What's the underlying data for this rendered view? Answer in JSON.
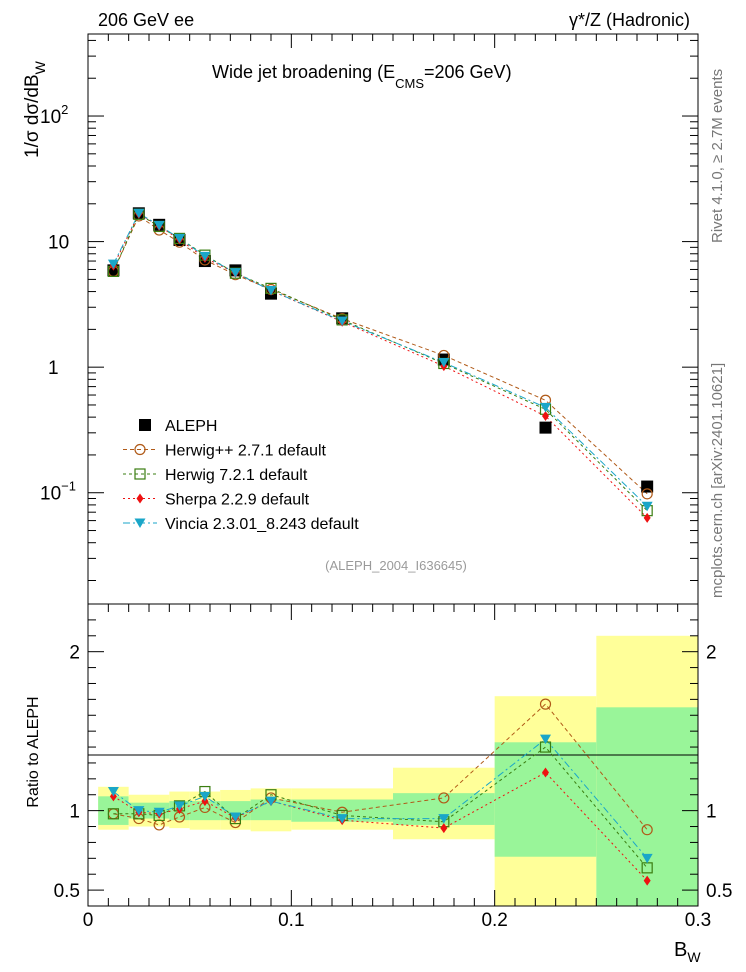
{
  "header": {
    "left_label": "206 GeV ee",
    "right_label": "γ*/Z (Hadronic)",
    "side_label_top": "Rivet 4.1.0, ≥ 2.7M events",
    "side_label_bottom": "mcplots.cern.ch [arXiv:2401.10621]"
  },
  "chart_data": {
    "type": "scatter",
    "title": "Wide jet broadening (E_CMS=206 GeV)",
    "title_main": "Wide jet broadening (E",
    "title_sub": "CMS",
    "title_tail": "=206 GeV)",
    "xlabel": "B_W",
    "xlabel_main": "B",
    "xlabel_sub": "W",
    "ylabel": "1/σ dσ/dB_W",
    "ylabel_main": "1/σ  dσ/dB",
    "ylabel_sub": "W",
    "ratio_ylabel": "Ratio to ALEPH",
    "watermark": "(ALEPH_2004_I636645)",
    "xlim": [
      0,
      0.3
    ],
    "ylim": [
      0.013,
      450
    ],
    "yscale": "log",
    "ratio_ylim": [
      0.4,
      2.3
    ],
    "x_ticks": [
      {
        "v": 0,
        "label": "0"
      },
      {
        "v": 0.1,
        "label": "0.1"
      },
      {
        "v": 0.2,
        "label": "0.2"
      },
      {
        "v": 0.3,
        "label": "0.3"
      }
    ],
    "y_ticks": [
      {
        "v": 0.1,
        "base": "10",
        "exp": "−1"
      },
      {
        "v": 1,
        "base": "1",
        "exp": ""
      },
      {
        "v": 10,
        "base": "10",
        "exp": ""
      },
      {
        "v": 100,
        "base": "10",
        "exp": "2"
      }
    ],
    "ratio_ticks": [
      {
        "v": 0.5,
        "label": "0.5"
      },
      {
        "v": 1,
        "label": "1"
      },
      {
        "v": 2,
        "label": "2"
      }
    ],
    "bins": [
      [
        0.005,
        0.02
      ],
      [
        0.02,
        0.03
      ],
      [
        0.03,
        0.04
      ],
      [
        0.04,
        0.05
      ],
      [
        0.05,
        0.065
      ],
      [
        0.065,
        0.08
      ],
      [
        0.08,
        0.1
      ],
      [
        0.1,
        0.15
      ],
      [
        0.15,
        0.2
      ],
      [
        0.2,
        0.25
      ],
      [
        0.25,
        0.3
      ]
    ],
    "x": [
      0.0125,
      0.025,
      0.035,
      0.045,
      0.0575,
      0.0725,
      0.09,
      0.125,
      0.175,
      0.225,
      0.275
    ],
    "data": {
      "name": "ALEPH",
      "values": [
        5.9,
        16.8,
        13.6,
        10.3,
        7.0,
        5.9,
        3.85,
        2.45,
        1.15,
        0.33,
        0.112
      ]
    },
    "band_inner": [
      [
        0.91,
        1.09
      ],
      [
        0.95,
        1.05
      ],
      [
        0.95,
        1.05
      ],
      [
        0.94,
        1.06
      ],
      [
        0.94,
        1.06
      ],
      [
        0.94,
        1.06
      ],
      [
        0.94,
        1.07
      ],
      [
        0.93,
        1.07
      ],
      [
        0.91,
        1.11
      ],
      [
        0.71,
        1.43
      ],
      [
        0.37,
        1.65
      ]
    ],
    "band_outer": [
      [
        0.88,
        1.15
      ],
      [
        0.9,
        1.1
      ],
      [
        0.9,
        1.1
      ],
      [
        0.89,
        1.12
      ],
      [
        0.88,
        1.12
      ],
      [
        0.88,
        1.13
      ],
      [
        0.87,
        1.14
      ],
      [
        0.88,
        1.14
      ],
      [
        0.82,
        1.27
      ],
      [
        0.35,
        1.72
      ],
      [
        0.35,
        2.1
      ]
    ],
    "series": [
      {
        "name": "Herwig++ 2.7.1 default",
        "color": "#b05a18",
        "marker": "circle",
        "dash": "4,3",
        "values": [
          5.79,
          16.0,
          12.36,
          9.89,
          7.14,
          5.45,
          4.16,
          2.43,
          1.24,
          0.545,
          0.098
        ],
        "ratio": [
          0.98,
          0.95,
          0.91,
          0.96,
          1.02,
          0.925,
          1.08,
          0.99,
          1.08,
          1.67,
          0.88
        ]
      },
      {
        "name": "Herwig 7.2.1 default",
        "color": "#3a7d10",
        "marker": "square",
        "dash": "3,3",
        "values": [
          5.79,
          16.5,
          13.2,
          10.6,
          7.8,
          5.6,
          4.24,
          2.38,
          1.07,
          0.462,
          0.072
        ],
        "ratio": [
          0.98,
          0.98,
          0.97,
          1.03,
          1.12,
          0.95,
          1.1,
          0.97,
          0.93,
          1.4,
          0.64
        ]
      },
      {
        "name": "Sherpa 2.2.9 default",
        "color": "#ee1111",
        "marker": "diamond",
        "dash": "2,3",
        "values": [
          6.43,
          16.63,
          13.33,
          10.38,
          7.42,
          5.63,
          4.08,
          2.3,
          1.02,
          0.408,
          0.063
        ],
        "ratio": [
          1.09,
          0.99,
          0.98,
          1.01,
          1.06,
          0.955,
          1.06,
          0.94,
          0.89,
          1.24,
          0.56
        ]
      },
      {
        "name": "Vincia 2.3.01_8.243 default",
        "color": "#1aa6c8",
        "marker": "triangle",
        "dash": "7,3,2,3",
        "values": [
          6.61,
          16.8,
          13.46,
          10.61,
          7.63,
          5.66,
          4.08,
          2.33,
          1.09,
          0.478,
          0.078
        ],
        "ratio": [
          1.12,
          1.0,
          0.99,
          1.03,
          1.09,
          0.96,
          1.06,
          0.95,
          0.95,
          1.45,
          0.7
        ]
      }
    ]
  }
}
